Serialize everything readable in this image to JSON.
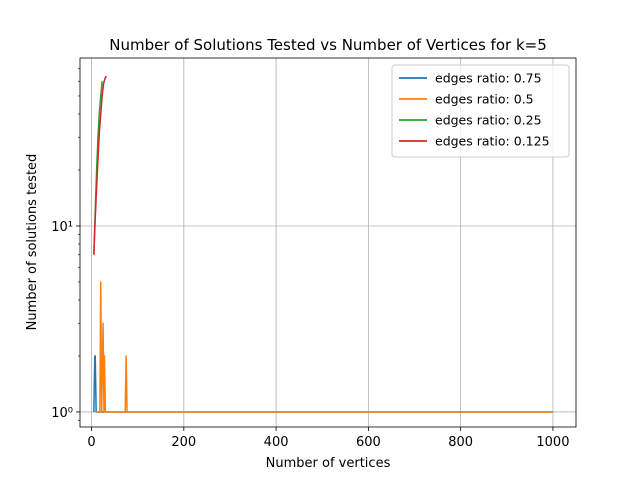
{
  "chart_data": {
    "type": "line",
    "title": "Number of Solutions Tested vs Number of Vertices for k=5",
    "xlabel": "Number of vertices",
    "ylabel": "Number of solutions tested",
    "xlim": [
      -25,
      1050
    ],
    "ylim": [
      0.83,
      80
    ],
    "yscale": "log",
    "grid": true,
    "legend_position": "top-right",
    "x_ticks": [
      0,
      200,
      400,
      600,
      800,
      1000
    ],
    "x_tick_labels": [
      "0",
      "200",
      "400",
      "600",
      "800",
      "1000"
    ],
    "y_ticks": [
      1,
      10
    ],
    "y_tick_labels": [
      "10⁰",
      "10¹"
    ],
    "series": [
      {
        "name": "edges ratio: 0.75",
        "color": "#1f77b4",
        "points": [
          [
            5,
            1
          ],
          [
            7,
            2
          ],
          [
            8,
            2
          ],
          [
            10,
            1
          ],
          [
            1000,
            1
          ]
        ]
      },
      {
        "name": "edges ratio: 0.5",
        "color": "#ff7f0e",
        "points": [
          [
            10,
            1
          ],
          [
            15,
            1
          ],
          [
            18,
            1
          ],
          [
            20,
            5
          ],
          [
            22,
            1
          ],
          [
            25,
            3
          ],
          [
            27,
            1
          ],
          [
            28,
            2
          ],
          [
            30,
            1
          ],
          [
            73,
            1
          ],
          [
            75,
            2
          ],
          [
            77,
            1
          ],
          [
            1000,
            1
          ]
        ]
      },
      {
        "name": "edges ratio: 0.25",
        "color": "#2ca02c",
        "points": [
          [
            5,
            7
          ],
          [
            8,
            12
          ],
          [
            11,
            20
          ],
          [
            14,
            30
          ],
          [
            17,
            41
          ],
          [
            20,
            50
          ],
          [
            23,
            60
          ]
        ]
      },
      {
        "name": "edges ratio: 0.125",
        "color": "#d62728",
        "points": [
          [
            5,
            7
          ],
          [
            8,
            11
          ],
          [
            11,
            16
          ],
          [
            14,
            23
          ],
          [
            17,
            32
          ],
          [
            20,
            40
          ],
          [
            23,
            50
          ],
          [
            26,
            58
          ],
          [
            29,
            62
          ],
          [
            32,
            64
          ]
        ]
      }
    ]
  }
}
